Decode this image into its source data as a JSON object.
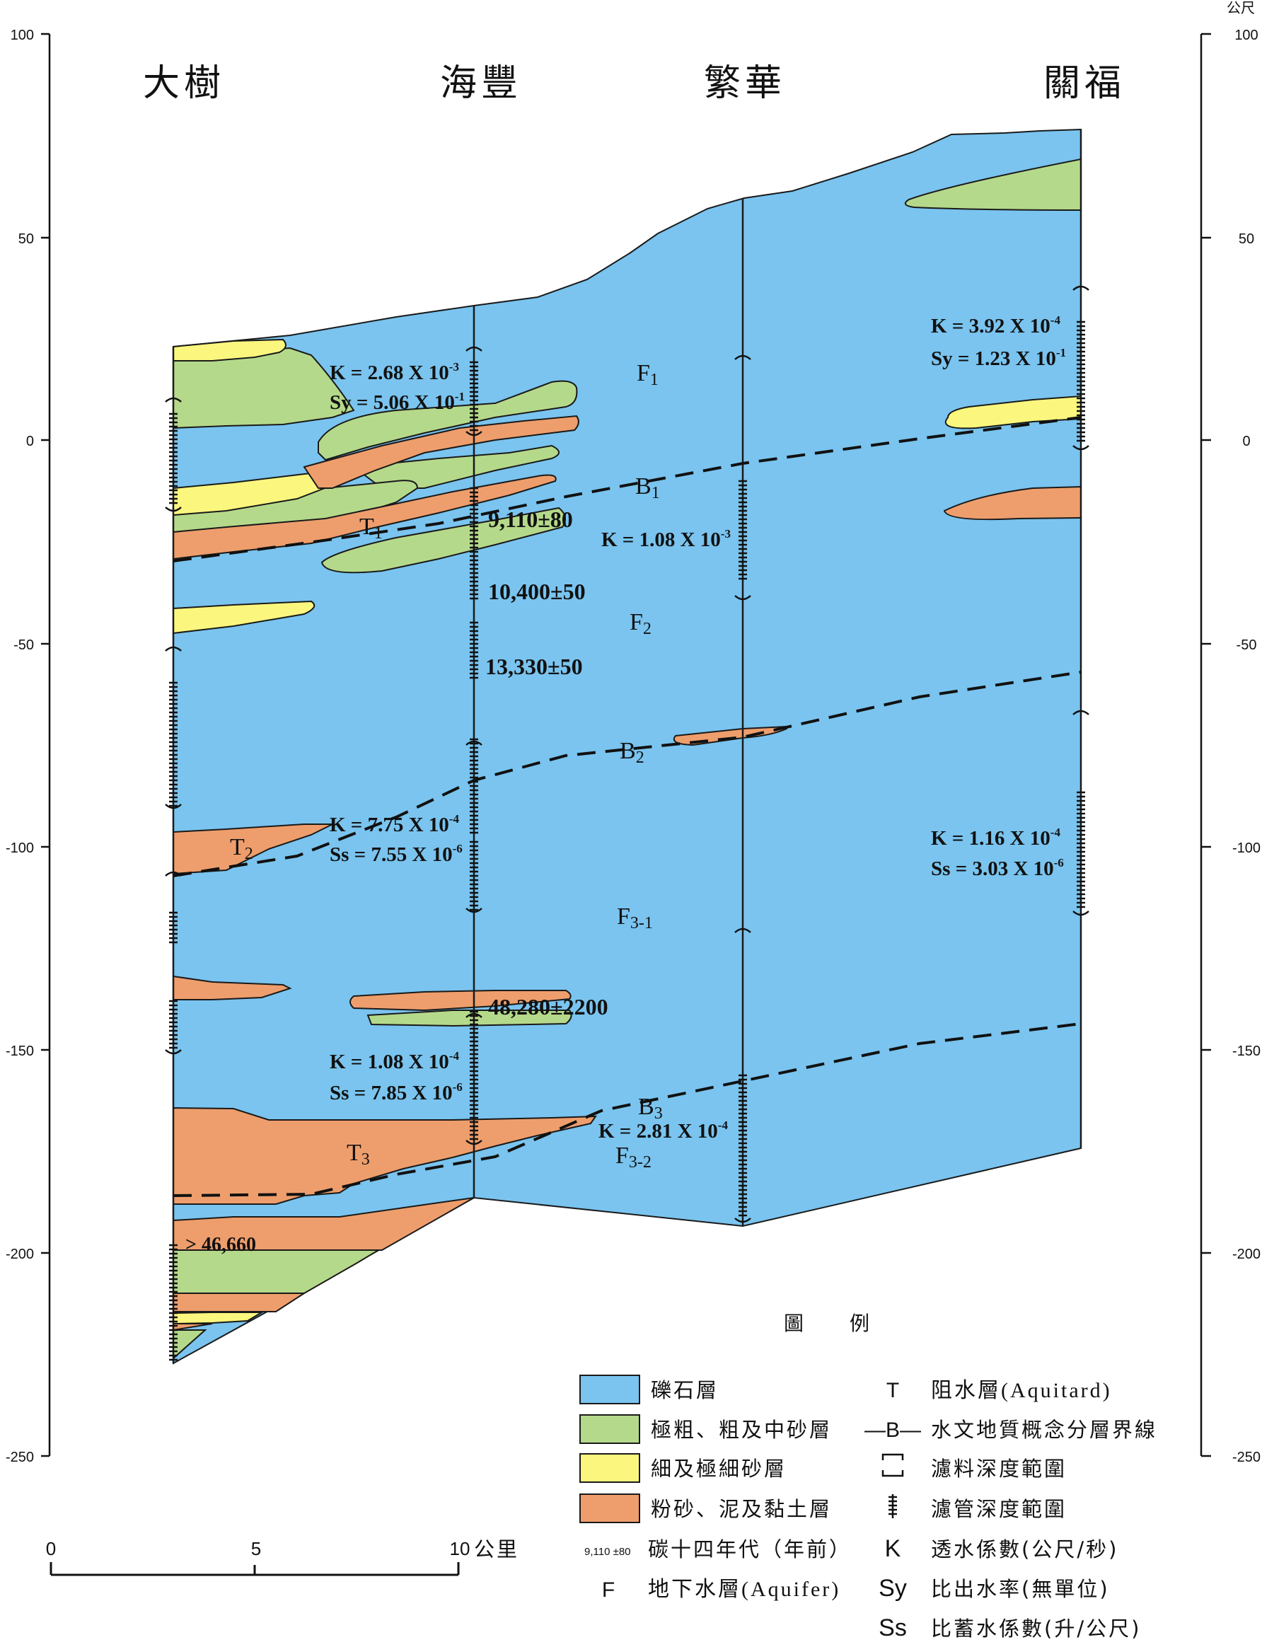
{
  "diagram": {
    "colors": {
      "gravel": "#7ac4ef",
      "coarse_sand": "#b5d98a",
      "fine_sand": "#fbf77e",
      "silt_clay": "#ee9e6c",
      "line": "#1a1a1a"
    },
    "stations": [
      "大樹",
      "海豐",
      "繁華",
      "關福"
    ],
    "axis": {
      "unit": "公尺",
      "left_ticks": [
        "100",
        "50",
        "0",
        "-50",
        "-100",
        "-150",
        "-200",
        "-250"
      ],
      "right_ticks": [
        "100",
        "50",
        "0",
        "-50",
        "-100",
        "-150",
        "-200",
        "-250"
      ]
    },
    "layer_labels": {
      "F1": "F",
      "F1_sub": "1",
      "B1": "B",
      "B1_sub": "1",
      "T1": "T",
      "T1_sub": "1",
      "F2": "F",
      "F2_sub": "2",
      "B2": "B",
      "B2_sub": "2",
      "T2": "T",
      "T2_sub": "2",
      "F3_1": "F",
      "F3_1_sub": "3-1",
      "B3": "B",
      "B3_sub": "3",
      "T3": "T",
      "T3_sub": "3",
      "F3_2": "F",
      "F3_2_sub": "3-2"
    },
    "params": {
      "haifeng_top_k": "K = 2.68 X 10",
      "haifeng_top_k_exp": "-3",
      "haifeng_top_sy": "Sy = 5.06 X 10",
      "haifeng_top_sy_exp": "-1",
      "guanfu_top_k": "K = 3.92 X 10",
      "guanfu_top_k_exp": "-4",
      "guanfu_top_sy": "Sy = 1.23 X 10",
      "guanfu_top_sy_exp": "-1",
      "fanhua_mid_k": "K = 1.08 X 10",
      "fanhua_mid_k_exp": "-3",
      "haifeng_mid_k": "K = 7.75 X 10",
      "haifeng_mid_k_exp": "-4",
      "haifeng_mid_ss": "Ss = 7.55 X 10",
      "haifeng_mid_ss_exp": "-6",
      "guanfu_mid_k": "K = 1.16 X 10",
      "guanfu_mid_k_exp": "-4",
      "guanfu_mid_ss": "Ss = 3.03 X 10",
      "guanfu_mid_ss_exp": "-6",
      "haifeng_low_k": "K = 1.08 X 10",
      "haifeng_low_k_exp": "-4",
      "haifeng_low_ss": "Ss = 7.85 X 10",
      "haifeng_low_ss_exp": "-6",
      "fanhua_low_k": "K = 2.81 X 10",
      "fanhua_low_k_exp": "-4"
    },
    "dates": [
      "9,110±80",
      "10,400±50",
      "13,330±50",
      "48,280±2200",
      "> 46,660"
    ],
    "scale_bar": {
      "ticks": [
        "0",
        "5",
        "10"
      ],
      "unit": "公里"
    }
  },
  "legend": {
    "title": "圖　　例",
    "swatches": [
      {
        "label": "礫石層",
        "color": "#7ac4ef"
      },
      {
        "label": "極粗、粗及中砂層",
        "color": "#b5d98a"
      },
      {
        "label": "細及極細砂層",
        "color": "#fbf77e"
      },
      {
        "label": "粉砂、泥及黏土層",
        "color": "#ee9e6c"
      }
    ],
    "date_example": "9,110 ±80",
    "date_label": "碳十四年代（年前）",
    "aquifer_symbol": "F",
    "aquifer_label": "地下水層(Aquifer)",
    "aquitard_symbol": "T",
    "aquitard_label": "阻水層(Aquitard)",
    "boundary_symbol": "—B—",
    "boundary_label": "水文地質概念分層界線",
    "filter_label": "濾料深度範圍",
    "screen_label": "濾管深度範圍",
    "k_symbol": "K",
    "k_label": "透水係數(公尺/秒)",
    "sy_symbol": "Sy",
    "sy_label": "比出水率(無單位)",
    "ss_symbol": "Ss",
    "ss_label": "比蓄水係數(升/公尺)"
  }
}
